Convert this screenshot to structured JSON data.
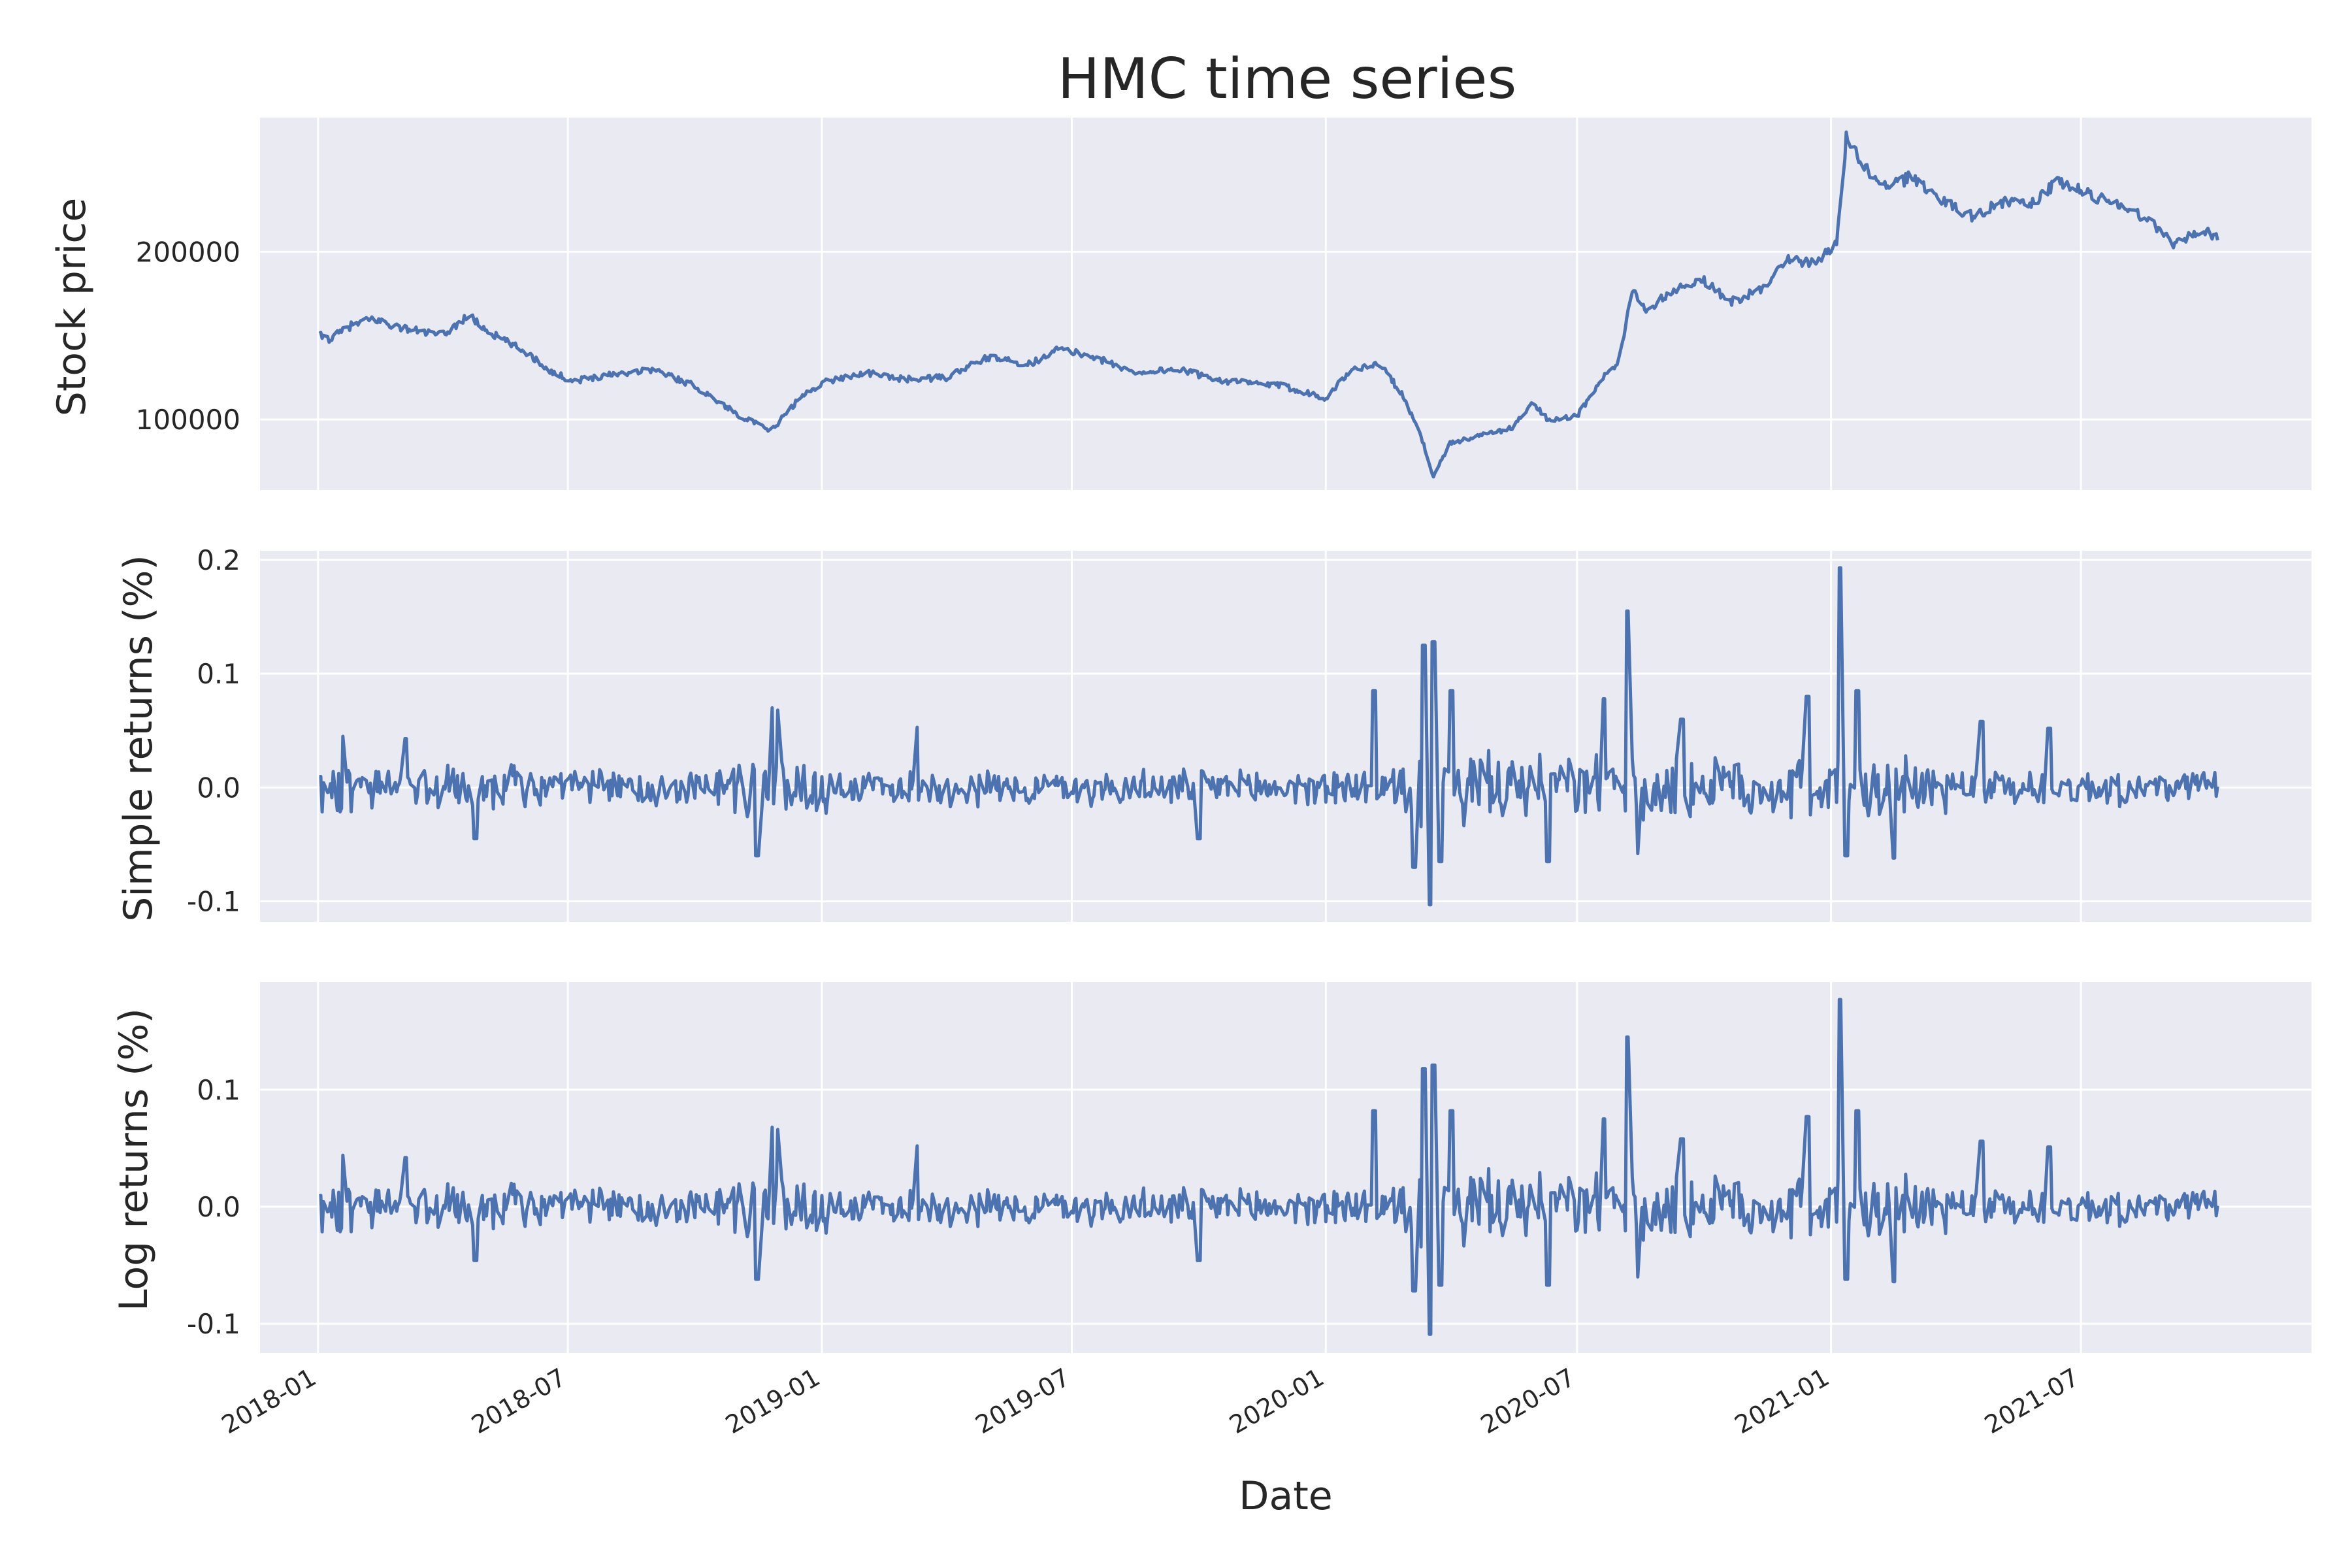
{
  "title": "HMC time series",
  "colors": {
    "line": "#4c72b0",
    "panel_bg": "#eaeaf2",
    "grid": "#ffffff",
    "text": "#262626"
  },
  "chart_data": [
    {
      "type": "line",
      "ylabel": "Stock price",
      "ylim": [
        58000,
        280000
      ],
      "yticks": [
        100000,
        200000
      ],
      "ytick_labels": [
        "100000",
        "200000"
      ],
      "xlim": [
        "2017-11-20",
        "2021-12-15"
      ],
      "grid": true,
      "series": [
        {
          "anchors": [
            [
              "2018-01-02",
              150000
            ],
            [
              "2018-01-10",
              148000
            ],
            [
              "2018-01-25",
              156000
            ],
            [
              "2018-02-10",
              160000
            ],
            [
              "2018-03-01",
              155000
            ],
            [
              "2018-04-01",
              150000
            ],
            [
              "2018-04-20",
              162000
            ],
            [
              "2018-05-05",
              152000
            ],
            [
              "2018-06-01",
              140000
            ],
            [
              "2018-06-20",
              128000
            ],
            [
              "2018-07-05",
              123000
            ],
            [
              "2018-08-01",
              127000
            ],
            [
              "2018-09-01",
              130000
            ],
            [
              "2018-10-01",
              120000
            ],
            [
              "2018-11-01",
              103000
            ],
            [
              "2018-11-25",
              93000
            ],
            [
              "2018-12-15",
              112000
            ],
            [
              "2019-01-01",
              122000
            ],
            [
              "2019-02-01",
              128000
            ],
            [
              "2019-03-01",
              124000
            ],
            [
              "2019-04-01",
              125000
            ],
            [
              "2019-05-01",
              137000
            ],
            [
              "2019-06-01",
              133000
            ],
            [
              "2019-06-20",
              142000
            ],
            [
              "2019-07-15",
              138000
            ],
            [
              "2019-08-15",
              128000
            ],
            [
              "2019-09-15",
              130000
            ],
            [
              "2019-10-20",
              123000
            ],
            [
              "2019-12-01",
              120000
            ],
            [
              "2020-01-01",
              113000
            ],
            [
              "2020-01-20",
              130000
            ],
            [
              "2020-02-10",
              133000
            ],
            [
              "2020-02-25",
              115000
            ],
            [
              "2020-03-10",
              90000
            ],
            [
              "2020-03-19",
              66000
            ],
            [
              "2020-03-31",
              86000
            ],
            [
              "2020-04-20",
              90000
            ],
            [
              "2020-05-15",
              95000
            ],
            [
              "2020-05-30",
              110000
            ],
            [
              "2020-06-10",
              100000
            ],
            [
              "2020-07-01",
              102000
            ],
            [
              "2020-07-20",
              125000
            ],
            [
              "2020-08-01",
              135000
            ],
            [
              "2020-08-10",
              178000
            ],
            [
              "2020-08-20",
              165000
            ],
            [
              "2020-09-10",
              178000
            ],
            [
              "2020-10-01",
              183000
            ],
            [
              "2020-10-20",
              170000
            ],
            [
              "2020-11-10",
              177000
            ],
            [
              "2020-12-01",
              195000
            ],
            [
              "2020-12-20",
              193000
            ],
            [
              "2021-01-05",
              205000
            ],
            [
              "2021-01-12",
              268000
            ],
            [
              "2021-01-25",
              250000
            ],
            [
              "2021-02-10",
              238000
            ],
            [
              "2021-03-01",
              245000
            ],
            [
              "2021-03-20",
              232000
            ],
            [
              "2021-04-15",
              220000
            ],
            [
              "2021-05-01",
              230000
            ],
            [
              "2021-05-25",
              228000
            ],
            [
              "2021-06-15",
              242000
            ],
            [
              "2021-07-10",
              233000
            ],
            [
              "2021-08-01",
              228000
            ],
            [
              "2021-08-25",
              215000
            ],
            [
              "2021-09-05",
              205000
            ],
            [
              "2021-09-25",
              212000
            ],
            [
              "2021-10-08",
              210000
            ]
          ]
        }
      ]
    },
    {
      "type": "line",
      "ylabel": "Simple returns (%)",
      "ylim": [
        -0.118,
        0.208
      ],
      "yticks": [
        -0.1,
        0.0,
        0.1,
        0.2
      ],
      "ytick_labels": [
        "-0.1",
        "0.0",
        "0.1",
        "0.2"
      ],
      "xlim": [
        "2017-11-20",
        "2021-12-15"
      ],
      "grid": true,
      "series": [
        {
          "spikes": [
            [
              "2018-01-20",
              0.045
            ],
            [
              "2018-03-05",
              0.043
            ],
            [
              "2018-04-25",
              -0.045
            ],
            [
              "2018-11-15",
              -0.06
            ],
            [
              "2018-11-25",
              0.07
            ],
            [
              "2018-12-01",
              0.068
            ],
            [
              "2019-03-10",
              0.053
            ],
            [
              "2019-10-01",
              -0.045
            ],
            [
              "2020-02-05",
              0.085
            ],
            [
              "2020-03-05",
              -0.07
            ],
            [
              "2020-03-12",
              0.125
            ],
            [
              "2020-03-16",
              -0.103
            ],
            [
              "2020-03-19",
              0.128
            ],
            [
              "2020-03-24",
              -0.065
            ],
            [
              "2020-04-01",
              0.085
            ],
            [
              "2020-06-10",
              -0.065
            ],
            [
              "2020-07-20",
              0.078
            ],
            [
              "2020-08-07",
              0.155
            ],
            [
              "2020-08-15",
              -0.058
            ],
            [
              "2020-09-15",
              0.06
            ],
            [
              "2020-12-15",
              0.08
            ],
            [
              "2021-01-08",
              0.193
            ],
            [
              "2021-01-12",
              -0.06
            ],
            [
              "2021-01-20",
              0.085
            ],
            [
              "2021-02-15",
              -0.062
            ],
            [
              "2021-04-20",
              0.058
            ],
            [
              "2021-06-08",
              0.052
            ]
          ]
        }
      ]
    },
    {
      "type": "line",
      "ylabel": "Log returns (%)",
      "xlabel": "Date",
      "ylim": [
        -0.125,
        0.192
      ],
      "yticks": [
        -0.1,
        0.0,
        0.1
      ],
      "ytick_labels": [
        "-0.1",
        "0.0",
        "0.1"
      ],
      "xlim": [
        "2017-11-20",
        "2021-12-15"
      ],
      "xticks": [
        "2018-01-01",
        "2018-07-01",
        "2019-01-01",
        "2019-07-01",
        "2020-01-01",
        "2020-07-01",
        "2021-01-01",
        "2021-07-01"
      ],
      "xtick_labels": [
        "2018-01",
        "2018-07",
        "2019-01",
        "2019-07",
        "2020-01",
        "2020-07",
        "2021-01",
        "2021-07"
      ],
      "grid": true,
      "series": [
        {
          "spikes": [
            [
              "2018-01-20",
              0.044
            ],
            [
              "2018-03-05",
              0.042
            ],
            [
              "2018-04-25",
              -0.046
            ],
            [
              "2018-11-15",
              -0.062
            ],
            [
              "2018-11-25",
              0.068
            ],
            [
              "2018-12-01",
              0.066
            ],
            [
              "2019-03-10",
              0.052
            ],
            [
              "2019-10-01",
              -0.046
            ],
            [
              "2020-02-05",
              0.082
            ],
            [
              "2020-03-05",
              -0.072
            ],
            [
              "2020-03-12",
              0.118
            ],
            [
              "2020-03-16",
              -0.109
            ],
            [
              "2020-03-19",
              0.121
            ],
            [
              "2020-03-24",
              -0.067
            ],
            [
              "2020-04-01",
              0.082
            ],
            [
              "2020-06-10",
              -0.067
            ],
            [
              "2020-07-20",
              0.075
            ],
            [
              "2020-08-07",
              0.145
            ],
            [
              "2020-08-15",
              -0.06
            ],
            [
              "2020-09-15",
              0.058
            ],
            [
              "2020-12-15",
              0.077
            ],
            [
              "2021-01-08",
              0.177
            ],
            [
              "2021-01-12",
              -0.062
            ],
            [
              "2021-01-20",
              0.082
            ],
            [
              "2021-02-15",
              -0.064
            ],
            [
              "2021-04-20",
              0.056
            ],
            [
              "2021-06-08",
              0.051
            ]
          ]
        }
      ]
    }
  ]
}
